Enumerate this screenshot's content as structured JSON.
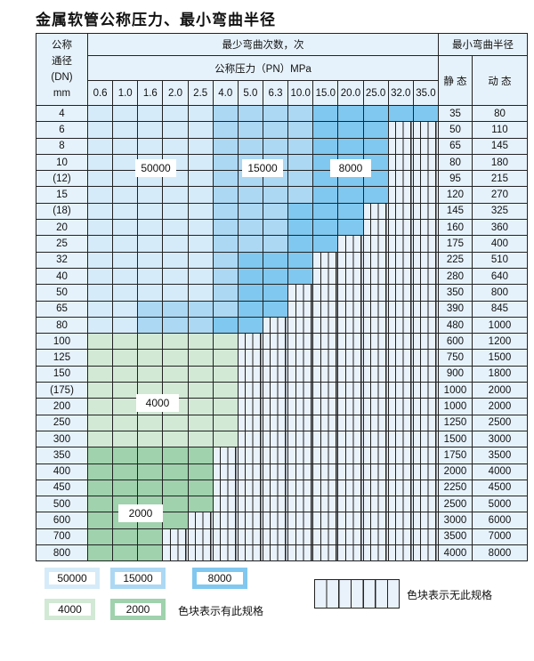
{
  "title": "金属软管公称压力、最小弯曲半径",
  "header": {
    "dn_label_lines": [
      "公称",
      "通径",
      "(DN)",
      "mm"
    ],
    "bend_count": "最少弯曲次数，次",
    "pressure": "公称压力（PN）MPa",
    "min_radius": "最小弯曲半径",
    "static": "静 态",
    "dynamic": "动 态",
    "pressures": [
      "0.6",
      "1.0",
      "1.6",
      "2.0",
      "2.5",
      "4.0",
      "5.0",
      "6.3",
      "10.0",
      "15.0",
      "20.0",
      "25.0",
      "32.0",
      "35.0"
    ]
  },
  "colors": {
    "A": "#d6ebf9",
    "B": "#acd8f4",
    "C": "#80c8ef",
    "D": "#d2e9d5",
    "E": "#9fd2ad"
  },
  "rows": [
    {
      "dn": "4",
      "static": "35",
      "dynamic": "80",
      "cells": "AAAAABBBBCCCCC"
    },
    {
      "dn": "6",
      "static": "50",
      "dynamic": "110",
      "cells": "AAAAABBBBCCCNN"
    },
    {
      "dn": "8",
      "static": "65",
      "dynamic": "145",
      "cells": "AAAAABBBBCCCNN"
    },
    {
      "dn": "10",
      "static": "80",
      "dynamic": "180",
      "cells": "AAAAABBBBCCCNN"
    },
    {
      "dn": "(12)",
      "static": "95",
      "dynamic": "215",
      "cells": "AAAAABBBBCCCNN"
    },
    {
      "dn": "15",
      "static": "120",
      "dynamic": "270",
      "cells": "AAAAABBBBCCCNN"
    },
    {
      "dn": "(18)",
      "static": "145",
      "dynamic": "325",
      "cells": "AAAAABBBCCCNNN"
    },
    {
      "dn": "20",
      "static": "160",
      "dynamic": "360",
      "cells": "AAAAABBBCCCNNN"
    },
    {
      "dn": "25",
      "static": "175",
      "dynamic": "400",
      "cells": "AAAAABBBCCNNNN"
    },
    {
      "dn": "32",
      "static": "225",
      "dynamic": "510",
      "cells": "AAAAABCCCNNNNN"
    },
    {
      "dn": "40",
      "static": "280",
      "dynamic": "640",
      "cells": "AAAAABCCCNNNNN"
    },
    {
      "dn": "50",
      "static": "350",
      "dynamic": "800",
      "cells": "AAAAABCCNNNNNN"
    },
    {
      "dn": "65",
      "static": "390",
      "dynamic": "845",
      "cells": "AABBBBCCNNNNNN"
    },
    {
      "dn": "80",
      "static": "480",
      "dynamic": "1000",
      "cells": "AABBBCCNNNNNNN"
    },
    {
      "dn": "100",
      "static": "600",
      "dynamic": "1200",
      "cells": "DDDDDDNNNNNNNN"
    },
    {
      "dn": "125",
      "static": "750",
      "dynamic": "1500",
      "cells": "DDDDDDNNNNNNNN"
    },
    {
      "dn": "150",
      "static": "900",
      "dynamic": "1800",
      "cells": "DDDDDDNNNNNNNN"
    },
    {
      "dn": "(175)",
      "static": "1000",
      "dynamic": "2000",
      "cells": "DDDDDDNNNNNNNN"
    },
    {
      "dn": "200",
      "static": "1000",
      "dynamic": "2000",
      "cells": "DDDDDDNNNNNNNN"
    },
    {
      "dn": "250",
      "static": "1250",
      "dynamic": "2500",
      "cells": "DDDDDDNNNNNNNN"
    },
    {
      "dn": "300",
      "static": "1500",
      "dynamic": "3000",
      "cells": "DDDDDDNNNNNNNN"
    },
    {
      "dn": "350",
      "static": "1750",
      "dynamic": "3500",
      "cells": "EEEEENNNNNNNNN"
    },
    {
      "dn": "400",
      "static": "2000",
      "dynamic": "4000",
      "cells": "EEEEENNNNNNNNN"
    },
    {
      "dn": "450",
      "static": "2250",
      "dynamic": "4500",
      "cells": "EEEEENNNNNNNNN"
    },
    {
      "dn": "500",
      "static": "2500",
      "dynamic": "5000",
      "cells": "EEEEENNNNNNNNN"
    },
    {
      "dn": "600",
      "static": "3000",
      "dynamic": "6000",
      "cells": "EEEENNNNNNNNNN"
    },
    {
      "dn": "700",
      "static": "3500",
      "dynamic": "7000",
      "cells": "EEENNNNNNNNNNN"
    },
    {
      "dn": "800",
      "static": "4000",
      "dynamic": "8000",
      "cells": "EEENNNNNNNNNNN"
    }
  ],
  "region_labels": {
    "a": "50000",
    "b": "15000",
    "c": "8000",
    "d": "4000",
    "e": "2000"
  },
  "legend": {
    "a": "50000",
    "b": "15000",
    "c": "8000",
    "d": "4000",
    "e": "2000",
    "has_spec": "色块表示有此规格",
    "no_spec": "色块表示无此规格"
  }
}
